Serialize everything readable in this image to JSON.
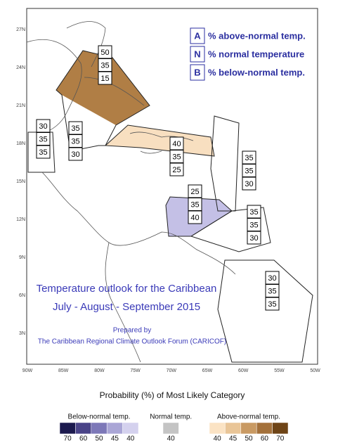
{
  "map": {
    "lat_labels": [
      "27N",
      "24N",
      "21N",
      "18N",
      "15N",
      "12N",
      "9N",
      "6N",
      "3N"
    ],
    "lon_labels": [
      "90W",
      "85W",
      "80W",
      "75W",
      "70W",
      "65W",
      "60W",
      "55W",
      "50W"
    ]
  },
  "key": [
    {
      "letter": "A",
      "text": "% above-normal temp."
    },
    {
      "letter": "N",
      "text": "% normal temperature"
    },
    {
      "letter": "B",
      "text": "% below-normal temp."
    }
  ],
  "regions": [
    {
      "values": [
        50,
        35,
        15
      ]
    },
    {
      "values": [
        30,
        35,
        35
      ]
    },
    {
      "values": [
        35,
        35,
        30
      ]
    },
    {
      "values": [
        40,
        35,
        25
      ]
    },
    {
      "values": [
        35,
        35,
        30
      ]
    },
    {
      "values": [
        25,
        35,
        40
      ]
    },
    {
      "values": [
        35,
        35,
        30
      ]
    },
    {
      "values": [
        30,
        35,
        35
      ]
    }
  ],
  "title": [
    "Temperature outlook for the Caribbean",
    "July - August - September 2015"
  ],
  "prepared": [
    "Prepared by",
    "The Caribbean Regional Climate Outlook Forum (CARICOF)"
  ],
  "legend": {
    "title": "Probability (%) of Most Likely Category",
    "groups": [
      {
        "label": "Below-normal temp.",
        "ticks": [
          70,
          60,
          50,
          45,
          40
        ],
        "colors": [
          "#1c1a4e",
          "#4a4488",
          "#7d78b8",
          "#aaa6d6",
          "#d4d1ee"
        ]
      },
      {
        "label": "Normal temp.",
        "ticks": [
          40
        ],
        "colors": [
          "#c4c4c4"
        ]
      },
      {
        "label": "Above-normal temp.",
        "ticks": [
          40,
          45,
          50,
          60,
          70
        ],
        "colors": [
          "#fbe3c4",
          "#e9c597",
          "#c99a63",
          "#a4713b",
          "#6e4416"
        ]
      }
    ]
  }
}
